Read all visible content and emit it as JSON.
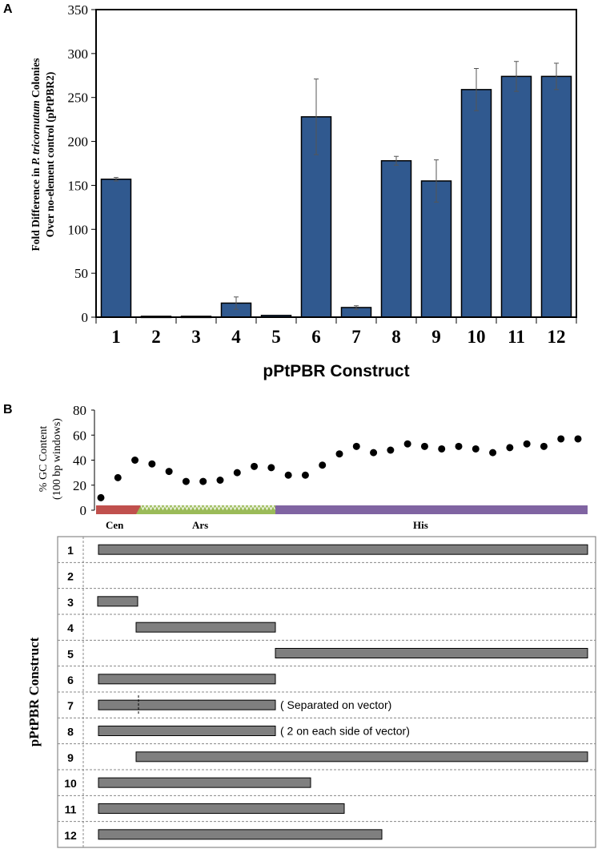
{
  "panel_a_label": "A",
  "panel_b_label": "B",
  "chart_data": [
    {
      "type": "bar",
      "categories": [
        "1",
        "2",
        "3",
        "4",
        "5",
        "6",
        "7",
        "8",
        "9",
        "10",
        "11",
        "12"
      ],
      "values": [
        157,
        1,
        1,
        16,
        2,
        228,
        11,
        178,
        155,
        259,
        274,
        274
      ],
      "error": [
        2,
        0,
        0,
        7,
        0,
        43,
        2,
        5,
        24,
        24,
        17,
        15
      ],
      "ylim": [
        0,
        350
      ],
      "yticks": [
        "0",
        "50",
        "100",
        "150",
        "200",
        "250",
        "300",
        "350"
      ],
      "xlabel": "pPtPBR Construct",
      "ylabel_prefix": "Fold Difference in ",
      "ylabel_species": "P. tricornutum",
      "ylabel_suffix": " Colonies",
      "ylabel_line2": "Over no-element control (pPtPBR2)",
      "bar_color": "#30598f"
    },
    {
      "type": "scatter",
      "x": [
        1,
        2,
        3,
        4,
        5,
        6,
        7,
        8,
        9,
        10,
        11,
        12,
        13,
        14,
        15,
        16,
        17,
        18,
        19,
        20,
        21,
        22,
        23,
        24,
        25,
        26,
        27,
        28,
        29
      ],
      "values": [
        10,
        26,
        40,
        37,
        31,
        23,
        23,
        24,
        30,
        35,
        34,
        28,
        28,
        36,
        45,
        51,
        46,
        48,
        53,
        51,
        49,
        51,
        49,
        46,
        50,
        53,
        51,
        57,
        57
      ],
      "ylim": [
        0,
        80
      ],
      "yticks": [
        "0",
        "20",
        "40",
        "60",
        "80"
      ],
      "ylabel_line1": "% GC Content",
      "ylabel_line2": "(100 bp windows)",
      "regions": [
        {
          "name": "Cen",
          "color": "#c0504d"
        },
        {
          "name": "Ars",
          "color": "#9bbb59"
        },
        {
          "name": "His",
          "color": "#8064a2"
        }
      ]
    }
  ],
  "constructs_title": "pPtPBR Construct",
  "constructs": [
    {
      "label": "1",
      "note": ""
    },
    {
      "label": "2",
      "note": ""
    },
    {
      "label": "3",
      "note": ""
    },
    {
      "label": "4",
      "note": ""
    },
    {
      "label": "5",
      "note": ""
    },
    {
      "label": "6",
      "note": ""
    },
    {
      "label": "7",
      "note": "( Separated on vector)"
    },
    {
      "label": "8",
      "note": "( 2 on each side of vector)"
    },
    {
      "label": "9",
      "note": ""
    },
    {
      "label": "10",
      "note": ""
    },
    {
      "label": "11",
      "note": ""
    },
    {
      "label": "12",
      "note": ""
    }
  ],
  "colors": {
    "bar": "#30598f",
    "segment": "#7f7f7f",
    "dot": "#000000"
  }
}
